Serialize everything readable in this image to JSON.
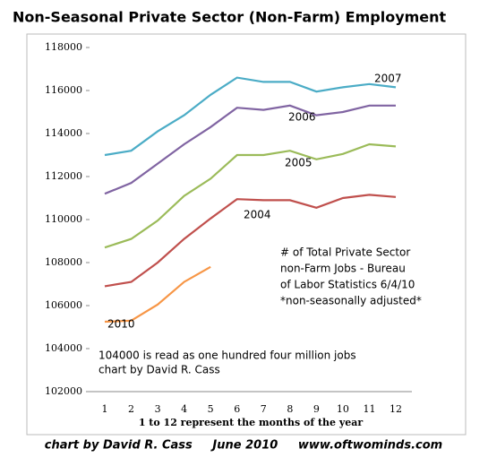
{
  "chart_data": {
    "type": "line",
    "title": "Non-Seasonal Private Sector (Non-Farm) Employment",
    "x_label": "1 to 12 represent the months of the year",
    "footer": "chart by David R. Cass     June 2010     www.oftwominds.com",
    "categories": [
      "1",
      "2",
      "3",
      "4",
      "5",
      "6",
      "7",
      "8",
      "9",
      "10",
      "11",
      "12"
    ],
    "ylim": [
      102000,
      118000
    ],
    "yticks": [
      102000,
      104000,
      106000,
      108000,
      110000,
      112000,
      114000,
      116000,
      118000
    ],
    "grid": false,
    "series": [
      {
        "name": "2007",
        "color": "#4bacc6",
        "values": [
          113000,
          113200,
          114100,
          114850,
          115800,
          116600,
          116400,
          116400,
          115950,
          116150,
          116300,
          116150
        ]
      },
      {
        "name": "2006",
        "color": "#8064a2",
        "values": [
          111200,
          111700,
          112600,
          113500,
          114300,
          115200,
          115100,
          115300,
          114850,
          115000,
          115300,
          115300
        ]
      },
      {
        "name": "2005",
        "color": "#9bbb59",
        "values": [
          108700,
          109100,
          109950,
          111100,
          111900,
          113000,
          113000,
          113200,
          112800,
          113050,
          113500,
          113400
        ]
      },
      {
        "name": "2004",
        "color": "#c0504d",
        "values": [
          106900,
          107100,
          108000,
          109100,
          110050,
          110950,
          110900,
          110900,
          110550,
          111000,
          111150,
          111050
        ]
      },
      {
        "name": "2010",
        "color": "#f79646",
        "values": [
          105250,
          105300,
          106050,
          107100,
          107800,
          null,
          null,
          null,
          null,
          null,
          null,
          null
        ]
      }
    ],
    "annotations": [
      "# of Total Private Sector",
      "non-Farm Jobs - Bureau",
      "of Labor Statistics 6/4/10",
      "*non-seasonally adjusted*",
      "104000 is read as one hundred four million jobs",
      "chart by David R. Cass"
    ]
  }
}
